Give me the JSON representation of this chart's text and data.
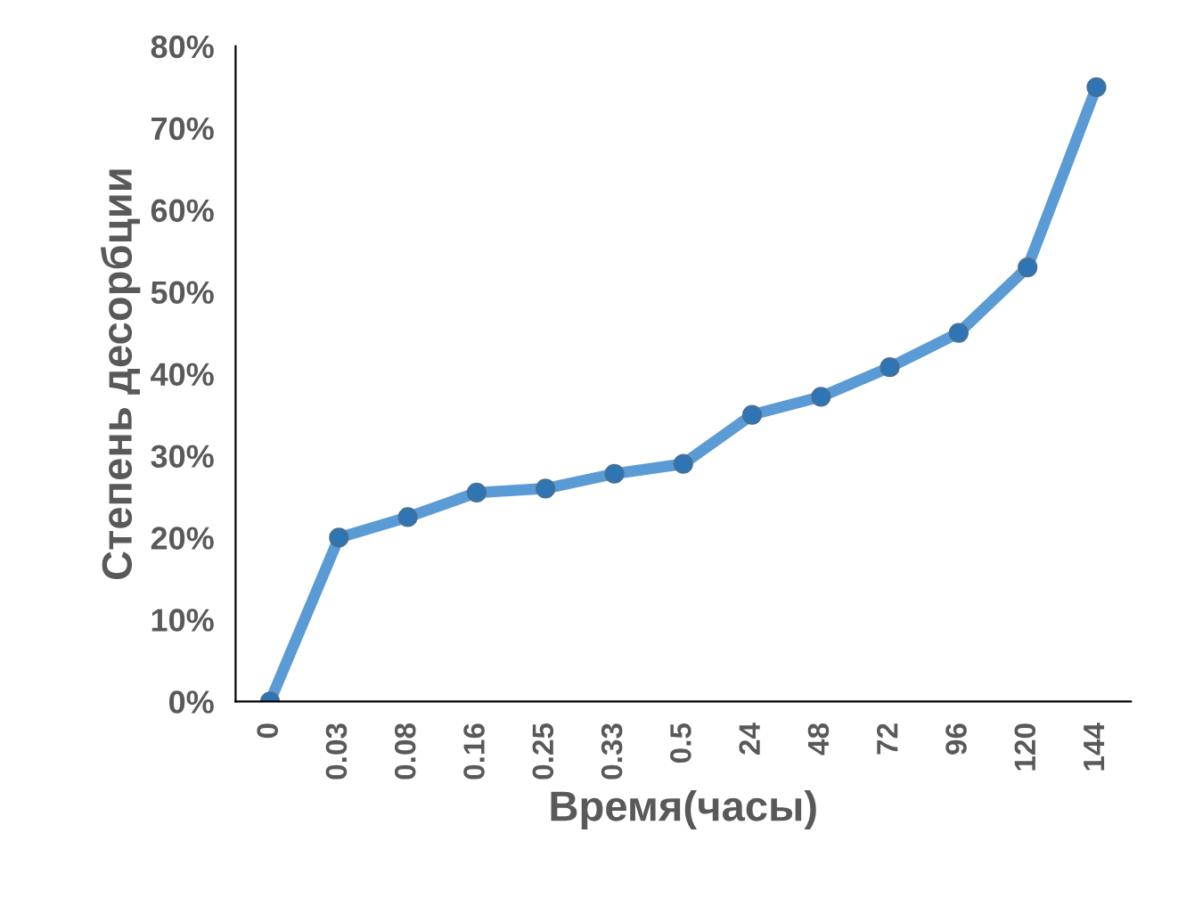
{
  "chart_data": {
    "type": "line",
    "xlabel": "Время(часы)",
    "ylabel": "Степень десорбции",
    "categories": [
      "0",
      "0.03",
      "0.08",
      "0.16",
      "0.25",
      "0.33",
      "0.5",
      "24",
      "48",
      "72",
      "96",
      "120",
      "144"
    ],
    "series": [
      {
        "color": "#5b9bd5",
        "values": [
          0,
          20,
          22.5,
          25.5,
          26,
          27.8,
          29,
          35,
          37.2,
          40.8,
          45,
          53,
          75
        ]
      }
    ],
    "ylim": [
      0,
      80
    ],
    "yticks": [
      {
        "value": 0,
        "label": "0%"
      },
      {
        "value": 10,
        "label": "10%"
      },
      {
        "value": 20,
        "label": "20%"
      },
      {
        "value": 30,
        "label": "30%"
      },
      {
        "value": 40,
        "label": "40%"
      },
      {
        "value": 50,
        "label": "50%"
      },
      {
        "value": 60,
        "label": "60%"
      },
      {
        "value": 70,
        "label": "70%"
      },
      {
        "value": 80,
        "label": "80%"
      }
    ],
    "grid": false,
    "legend": false,
    "marker": "circle",
    "line_style": "solid"
  }
}
